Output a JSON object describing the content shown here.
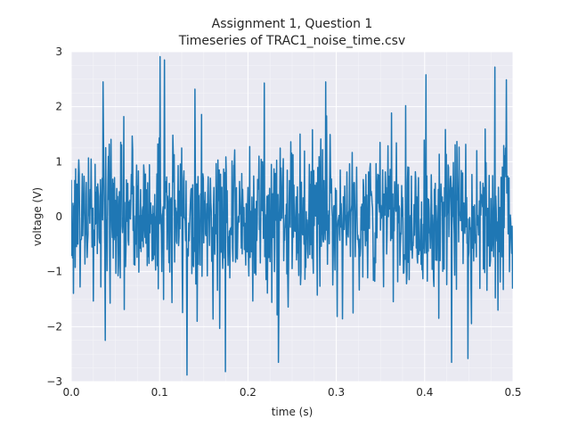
{
  "chart_data": {
    "type": "line",
    "title": "Assignment 1, Question 1",
    "subtitle": "Timeseries of TRAC1_noise_time.csv",
    "xlabel": "time (s)",
    "ylabel": "voltage (V)",
    "xlim": [
      0.0,
      0.5
    ],
    "ylim": [
      -3,
      3
    ],
    "xticks": [
      "0.0",
      "0.1",
      "0.2",
      "0.3",
      "0.4",
      "0.5"
    ],
    "yticks": [
      "3",
      "2",
      "1",
      "0",
      "−1",
      "−2",
      "−3"
    ],
    "grid": true,
    "background_color": "#EAEAF2",
    "line_color": "#1F77B4",
    "sample_count": 1000,
    "sample_interval": 0.0005,
    "distribution": "zero-mean noise, sd ≈ 0.7 V, peaks ≈ ±2.9 V",
    "notable_points": [
      {
        "x": 0.1005,
        "y": 2.91
      },
      {
        "x": 0.1055,
        "y": 2.85
      },
      {
        "x": 0.131,
        "y": -2.88
      },
      {
        "x": 0.1745,
        "y": -2.82
      },
      {
        "x": 0.036,
        "y": 2.45
      },
      {
        "x": 0.0385,
        "y": -2.25
      },
      {
        "x": 0.2185,
        "y": 2.43
      },
      {
        "x": 0.2345,
        "y": -2.65
      },
      {
        "x": 0.288,
        "y": 2.45
      },
      {
        "x": 0.4015,
        "y": 2.58
      },
      {
        "x": 0.4305,
        "y": -2.65
      },
      {
        "x": 0.449,
        "y": -2.58
      },
      {
        "x": 0.4795,
        "y": 2.72
      },
      {
        "x": 0.4925,
        "y": 2.49
      },
      {
        "x": 0.4995,
        "y": -1.31
      }
    ]
  }
}
